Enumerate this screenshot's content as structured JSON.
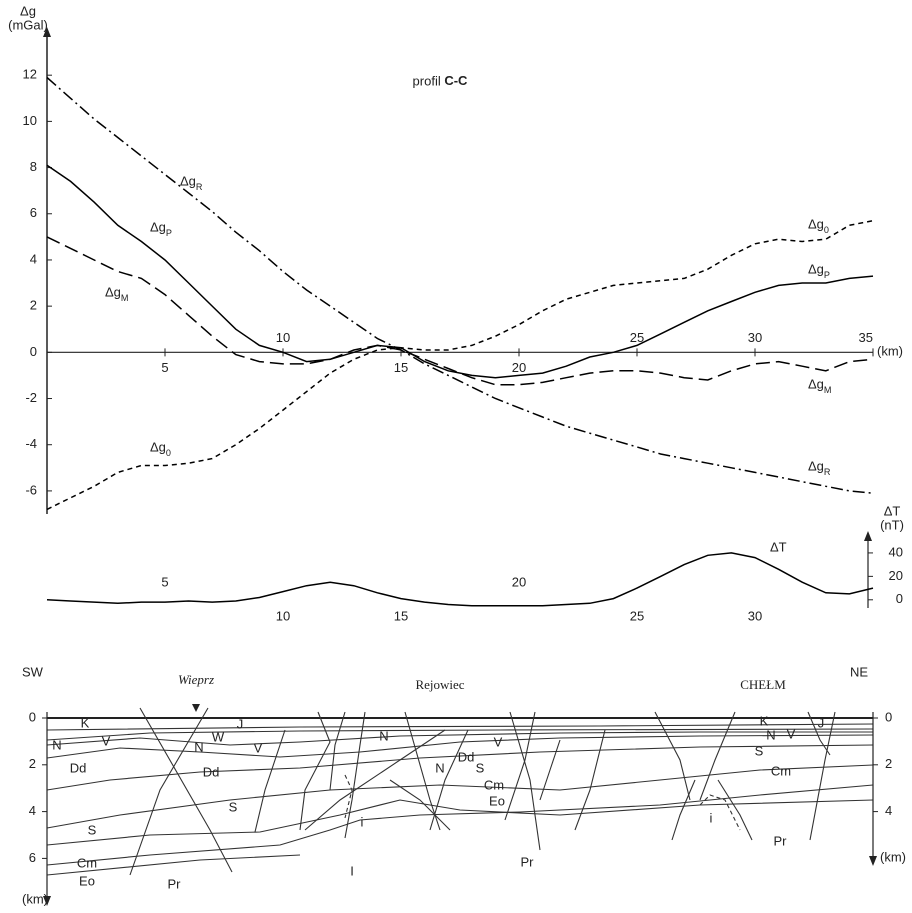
{
  "chart_data": [
    {
      "type": "line",
      "title": "profil C-C",
      "y_label": "Δg",
      "y_unit": "(mGal)",
      "x_label": "(km)",
      "x": [
        0,
        1,
        2,
        3,
        4,
        5,
        6,
        7,
        8,
        9,
        10,
        11,
        12,
        13,
        14,
        15,
        16,
        17,
        18,
        19,
        20,
        21,
        22,
        23,
        24,
        25,
        26,
        27,
        28,
        29,
        30,
        31,
        32,
        33,
        34,
        35
      ],
      "xlim": [
        0,
        35
      ],
      "xticks": [
        5,
        10,
        15,
        20,
        25,
        30,
        35
      ],
      "ylim": [
        -7,
        14
      ],
      "yticks": [
        -6,
        -4,
        -2,
        0,
        2,
        4,
        6,
        8,
        10,
        12
      ],
      "series": [
        {
          "name": "ΔgR",
          "color": "#000000",
          "style": "dashdot",
          "values": [
            11.9,
            11.0,
            10.1,
            9.3,
            8.5,
            7.7,
            6.9,
            6.1,
            5.2,
            4.4,
            3.5,
            2.7,
            2.0,
            1.3,
            0.6,
            0.1,
            -0.5,
            -1.0,
            -1.5,
            -2.0,
            -2.4,
            -2.8,
            -3.2,
            -3.5,
            -3.8,
            -4.1,
            -4.4,
            -4.6,
            -4.8,
            -5.0,
            -5.2,
            -5.4,
            -5.6,
            -5.8,
            -6.0,
            -6.1
          ]
        },
        {
          "name": "ΔgP",
          "color": "#000000",
          "style": "solid",
          "values": [
            8.1,
            7.4,
            6.5,
            5.5,
            4.8,
            4.0,
            3.0,
            2.0,
            1.0,
            0.3,
            0.0,
            -0.4,
            -0.3,
            0.0,
            0.3,
            0.2,
            -0.4,
            -0.8,
            -1.0,
            -1.1,
            -1.0,
            -0.9,
            -0.6,
            -0.2,
            0.0,
            0.3,
            0.8,
            1.3,
            1.8,
            2.2,
            2.6,
            2.9,
            3.0,
            3.0,
            3.2,
            3.3
          ]
        },
        {
          "name": "ΔgM",
          "color": "#000000",
          "style": "longdash",
          "values": [
            5.0,
            4.5,
            4.0,
            3.5,
            3.2,
            2.5,
            1.6,
            0.7,
            -0.1,
            -0.4,
            -0.5,
            -0.5,
            -0.3,
            0.1,
            0.3,
            0.1,
            -0.3,
            -0.7,
            -1.1,
            -1.4,
            -1.4,
            -1.3,
            -1.1,
            -0.9,
            -0.8,
            -0.8,
            -0.9,
            -1.1,
            -1.2,
            -0.8,
            -0.5,
            -0.4,
            -0.6,
            -0.8,
            -0.4,
            -0.3
          ]
        },
        {
          "name": "Δg0",
          "color": "#000000",
          "style": "shortdash",
          "values": [
            -6.8,
            -6.3,
            -5.8,
            -5.2,
            -4.9,
            -4.9,
            -4.8,
            -4.6,
            -4.0,
            -3.3,
            -2.5,
            -1.7,
            -0.9,
            -0.3,
            0.1,
            0.2,
            0.1,
            0.1,
            0.3,
            0.7,
            1.2,
            1.8,
            2.3,
            2.6,
            2.9,
            3.0,
            3.1,
            3.2,
            3.6,
            4.2,
            4.7,
            4.9,
            4.8,
            4.9,
            5.5,
            5.7
          ]
        }
      ]
    },
    {
      "type": "line",
      "y_label": "ΔT",
      "y_unit": "(nT)",
      "x": [
        0,
        1,
        2,
        3,
        4,
        5,
        6,
        7,
        8,
        9,
        10,
        11,
        12,
        13,
        14,
        15,
        16,
        17,
        18,
        19,
        20,
        21,
        22,
        23,
        24,
        25,
        26,
        27,
        28,
        29,
        30,
        31,
        32,
        33,
        34,
        35
      ],
      "xlim": [
        0,
        35
      ],
      "xticks": [
        5,
        10,
        15,
        20,
        25,
        30
      ],
      "ylim": [
        -7,
        57
      ],
      "yticks": [
        0,
        20,
        40
      ],
      "series": [
        {
          "name": "ΔT",
          "color": "#000000",
          "style": "solid",
          "values": [
            0,
            -1,
            -2,
            -3,
            -2,
            -2,
            -1,
            -2,
            -1,
            2,
            7,
            12,
            15,
            12,
            6,
            1,
            -2,
            -4,
            -5,
            -5,
            -5,
            -5,
            -4,
            -3,
            1,
            10,
            20,
            30,
            38,
            40,
            36,
            26,
            15,
            6,
            5,
            10
          ]
        }
      ]
    }
  ],
  "section": {
    "left_label": "SW",
    "right_label": "NE",
    "places": [
      "Wieprz",
      "Rejowiec",
      "CHEŁM"
    ],
    "depth_label": "(km)",
    "ylim": [
      0,
      7.5
    ],
    "left_ticks": [
      0,
      2,
      4,
      6
    ],
    "right_ticks": [
      0,
      2,
      4
    ],
    "unit_labels": [
      "K",
      "N",
      "V",
      "Dd",
      "S",
      "Cm",
      "Eo",
      "N",
      "W",
      "J",
      "Dd",
      "V",
      "S",
      "Pr",
      "N",
      "N",
      "Dd",
      "V",
      "S",
      "Cm",
      "Eo",
      "Pr",
      "i",
      "I",
      "K",
      "J",
      "N",
      "V",
      "S",
      "Cm",
      "i",
      "Pr"
    ]
  }
}
